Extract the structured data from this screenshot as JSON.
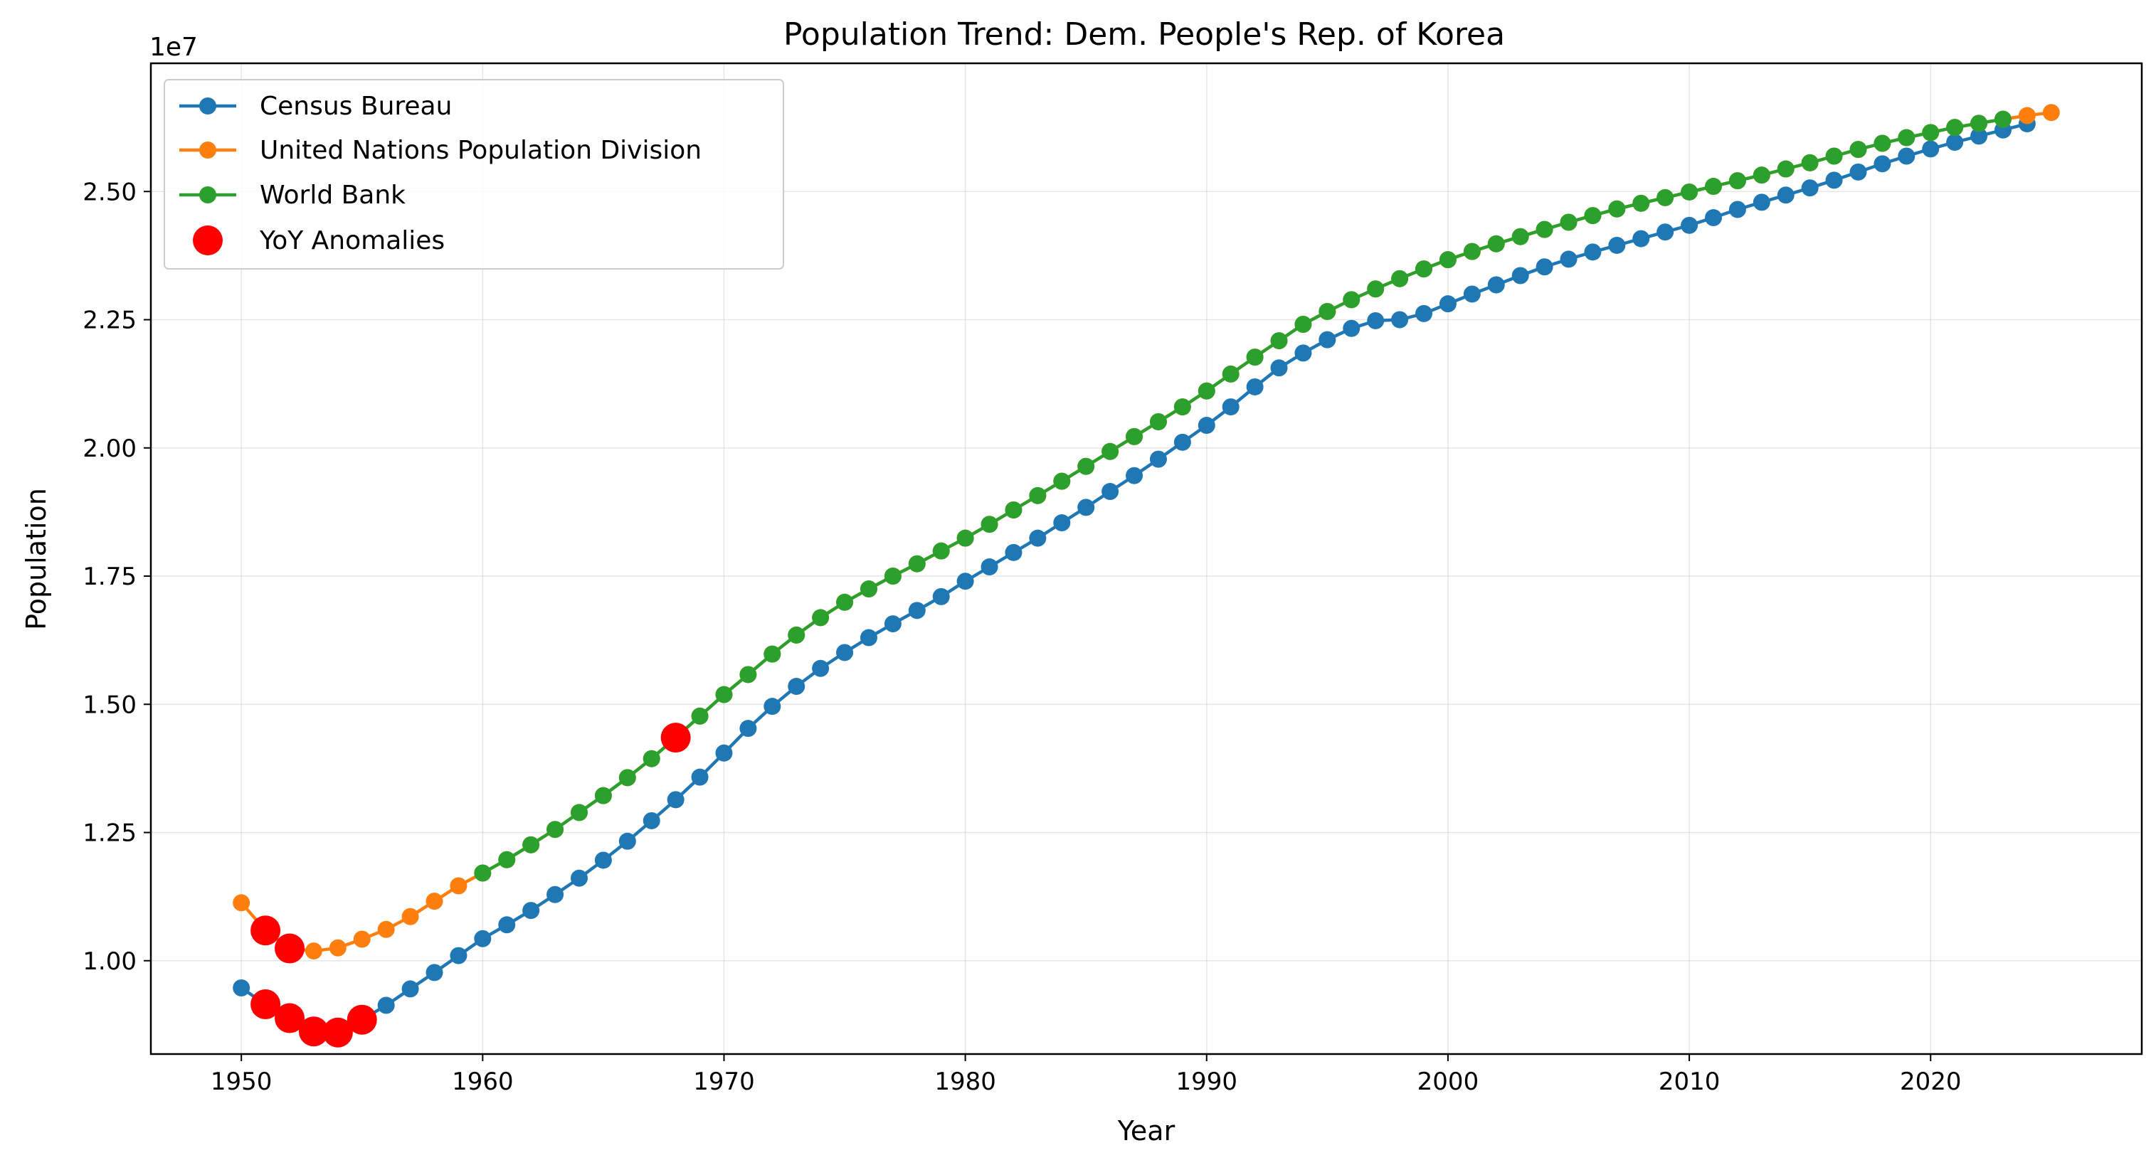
{
  "chart_data": {
    "type": "line",
    "title": "Population Trend: Dem. People's Rep. of Korea",
    "xlabel": "Year",
    "ylabel": "Population",
    "y_offset_label": "1e7",
    "xlim": [
      1946.25,
      2028.75
    ],
    "ylim": [
      8180000.0,
      27500000.0
    ],
    "x_ticks": [
      1950,
      1960,
      1970,
      1980,
      1990,
      2000,
      2010,
      2020
    ],
    "y_ticks": [
      10000000,
      12500000,
      15000000,
      17500000,
      20000000,
      22500000,
      25000000
    ],
    "y_tick_labels": [
      "1.00",
      "1.25",
      "1.50",
      "1.75",
      "2.00",
      "2.25",
      "2.50"
    ],
    "grid": true,
    "legend_position": "top-left",
    "series": [
      {
        "name": "Census Bureau",
        "color": "#1f77b4",
        "x": [
          1950,
          1951,
          1952,
          1953,
          1954,
          1955,
          1956,
          1957,
          1958,
          1959,
          1960,
          1961,
          1962,
          1963,
          1964,
          1965,
          1966,
          1967,
          1968,
          1969,
          1970,
          1971,
          1972,
          1973,
          1974,
          1975,
          1976,
          1977,
          1978,
          1979,
          1980,
          1981,
          1982,
          1983,
          1984,
          1985,
          1986,
          1987,
          1988,
          1989,
          1990,
          1991,
          1992,
          1993,
          1994,
          1995,
          1996,
          1997,
          1998,
          1999,
          2000,
          2001,
          2002,
          2003,
          2004,
          2005,
          2006,
          2007,
          2008,
          2009,
          2010,
          2011,
          2012,
          2013,
          2014,
          2015,
          2016,
          2017,
          2018,
          2019,
          2020,
          2021,
          2022,
          2023,
          2024
        ],
        "y": [
          9470000,
          9150000,
          8880000,
          8620000,
          8600000,
          8850000,
          9130000,
          9450000,
          9770000,
          10100000,
          10430000,
          10700000,
          10980000,
          11290000,
          11610000,
          11960000,
          12330000,
          12730000,
          13140000,
          13580000,
          14050000,
          14530000,
          14960000,
          15350000,
          15700000,
          16010000,
          16300000,
          16570000,
          16830000,
          17100000,
          17400000,
          17680000,
          17960000,
          18240000,
          18540000,
          18840000,
          19150000,
          19460000,
          19780000,
          20110000,
          20440000,
          20800000,
          21190000,
          21560000,
          21850000,
          22110000,
          22330000,
          22480000,
          22500000,
          22620000,
          22810000,
          23000000,
          23180000,
          23360000,
          23530000,
          23680000,
          23820000,
          23950000,
          24080000,
          24210000,
          24340000,
          24490000,
          24650000,
          24790000,
          24930000,
          25070000,
          25220000,
          25380000,
          25540000,
          25690000,
          25830000,
          25960000,
          26080000,
          26200000,
          26320000
        ]
      },
      {
        "name": "United Nations Population Division",
        "color": "#ff7f0e",
        "x": [
          1950,
          1951,
          1952,
          1953,
          1954,
          1955,
          1956,
          1957,
          1958,
          1959,
          1960,
          1961,
          1962,
          1963,
          1964,
          1965,
          1966,
          1967,
          1968,
          1969,
          1970,
          1971,
          1972,
          1973,
          1974,
          1975,
          1976,
          1977,
          1978,
          1979,
          1980,
          1981,
          1982,
          1983,
          1984,
          1985,
          1986,
          1987,
          1988,
          1989,
          1990,
          1991,
          1992,
          1993,
          1994,
          1995,
          1996,
          1997,
          1998,
          1999,
          2000,
          2001,
          2002,
          2003,
          2004,
          2005,
          2006,
          2007,
          2008,
          2009,
          2010,
          2011,
          2012,
          2013,
          2014,
          2015,
          2016,
          2017,
          2018,
          2019,
          2020,
          2021,
          2022,
          2023,
          2024,
          2025
        ],
        "y": [
          11130000,
          10590000,
          10240000,
          10190000,
          10250000,
          10420000,
          10610000,
          10860000,
          11160000,
          11460000,
          11710000,
          11970000,
          12260000,
          12560000,
          12890000,
          13220000,
          13570000,
          13940000,
          14350000,
          14770000,
          15190000,
          15580000,
          15980000,
          16350000,
          16690000,
          16990000,
          17250000,
          17500000,
          17740000,
          17990000,
          18240000,
          18510000,
          18790000,
          19070000,
          19350000,
          19640000,
          19930000,
          20220000,
          20510000,
          20800000,
          21110000,
          21440000,
          21770000,
          22090000,
          22410000,
          22660000,
          22890000,
          23100000,
          23300000,
          23490000,
          23670000,
          23830000,
          23980000,
          24120000,
          24260000,
          24400000,
          24530000,
          24660000,
          24770000,
          24880000,
          24990000,
          25100000,
          25210000,
          25320000,
          25440000,
          25560000,
          25690000,
          25820000,
          25940000,
          26050000,
          26150000,
          26250000,
          26330000,
          26410000,
          26480000,
          26540000
        ]
      },
      {
        "name": "World Bank",
        "color": "#2ca02c",
        "x": [
          1960,
          1961,
          1962,
          1963,
          1964,
          1965,
          1966,
          1967,
          1968,
          1969,
          1970,
          1971,
          1972,
          1973,
          1974,
          1975,
          1976,
          1977,
          1978,
          1979,
          1980,
          1981,
          1982,
          1983,
          1984,
          1985,
          1986,
          1987,
          1988,
          1989,
          1990,
          1991,
          1992,
          1993,
          1994,
          1995,
          1996,
          1997,
          1998,
          1999,
          2000,
          2001,
          2002,
          2003,
          2004,
          2005,
          2006,
          2007,
          2008,
          2009,
          2010,
          2011,
          2012,
          2013,
          2014,
          2015,
          2016,
          2017,
          2018,
          2019,
          2020,
          2021,
          2022,
          2023
        ],
        "y": [
          11710000,
          11970000,
          12260000,
          12560000,
          12890000,
          13220000,
          13570000,
          13940000,
          14350000,
          14770000,
          15190000,
          15580000,
          15980000,
          16350000,
          16690000,
          16990000,
          17250000,
          17500000,
          17740000,
          17990000,
          18240000,
          18510000,
          18790000,
          19070000,
          19350000,
          19640000,
          19930000,
          20220000,
          20510000,
          20800000,
          21110000,
          21440000,
          21770000,
          22090000,
          22410000,
          22660000,
          22890000,
          23100000,
          23300000,
          23490000,
          23670000,
          23830000,
          23980000,
          24120000,
          24260000,
          24400000,
          24530000,
          24660000,
          24770000,
          24880000,
          24990000,
          25100000,
          25210000,
          25320000,
          25440000,
          25560000,
          25690000,
          25820000,
          25940000,
          26050000,
          26150000,
          26250000,
          26330000,
          26410000
        ]
      }
    ],
    "anomalies": {
      "name": "YoY Anomalies",
      "color": "#ff0000",
      "points": [
        {
          "x": 1951,
          "y": 10590000
        },
        {
          "x": 1952,
          "y": 10240000
        },
        {
          "x": 1951,
          "y": 9150000
        },
        {
          "x": 1952,
          "y": 8880000
        },
        {
          "x": 1953,
          "y": 8620000
        },
        {
          "x": 1954,
          "y": 8600000
        },
        {
          "x": 1955,
          "y": 8850000
        },
        {
          "x": 1968,
          "y": 14350000
        }
      ]
    },
    "legend": [
      {
        "label": "Census Bureau",
        "color": "#1f77b4",
        "kind": "line"
      },
      {
        "label": "United Nations Population Division",
        "color": "#ff7f0e",
        "kind": "line"
      },
      {
        "label": "World Bank",
        "color": "#2ca02c",
        "kind": "line"
      },
      {
        "label": "YoY Anomalies",
        "color": "#ff0000",
        "kind": "marker"
      }
    ]
  }
}
